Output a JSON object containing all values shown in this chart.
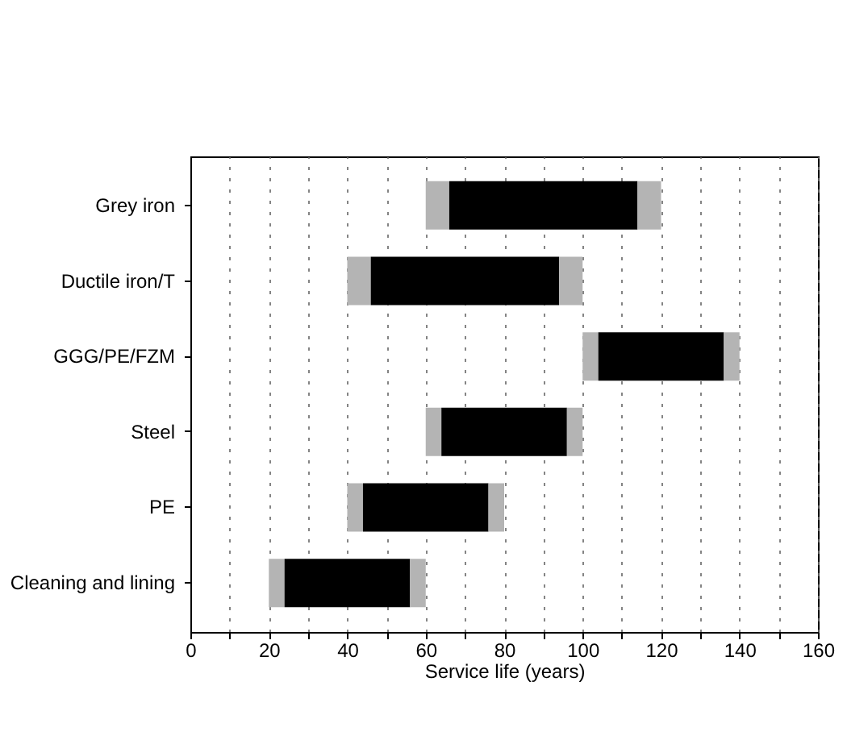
{
  "chart_data": {
    "type": "bar",
    "orientation": "horizontal",
    "xlabel": "Service life (years)",
    "categories": [
      "Grey iron",
      "Ductile iron/T",
      "GGG/PE/FZM",
      "Steel",
      "PE",
      "Cleaning and lining"
    ],
    "series": [
      {
        "color": "#b4b4b4",
        "base": [
          60,
          40,
          100,
          60,
          40,
          20
        ],
        "values": [
          6,
          6,
          4,
          4,
          4,
          4
        ]
      },
      {
        "color": "#000000",
        "base": [
          66,
          46,
          104,
          64,
          44,
          24
        ],
        "values": [
          48,
          48,
          32,
          32,
          32,
          32
        ]
      },
      {
        "color": "#b4b4b4",
        "base": [
          114,
          94,
          136,
          96,
          76,
          56
        ],
        "values": [
          6,
          6,
          4,
          4,
          4,
          4
        ]
      }
    ],
    "xlim": [
      0,
      160
    ],
    "xticks": [
      0,
      {
        "value": 10,
        "label": null
      },
      20,
      {
        "value": 30,
        "label": null
      },
      40,
      {
        "value": 50,
        "label": null
      },
      60,
      {
        "value": 70,
        "label": null
      },
      80,
      {
        "value": 90,
        "label": null
      },
      100,
      {
        "value": 110,
        "label": null
      },
      120,
      {
        "value": 130,
        "label": null
      },
      140,
      {
        "value": 150,
        "label": null
      },
      160
    ],
    "grid": "x"
  }
}
